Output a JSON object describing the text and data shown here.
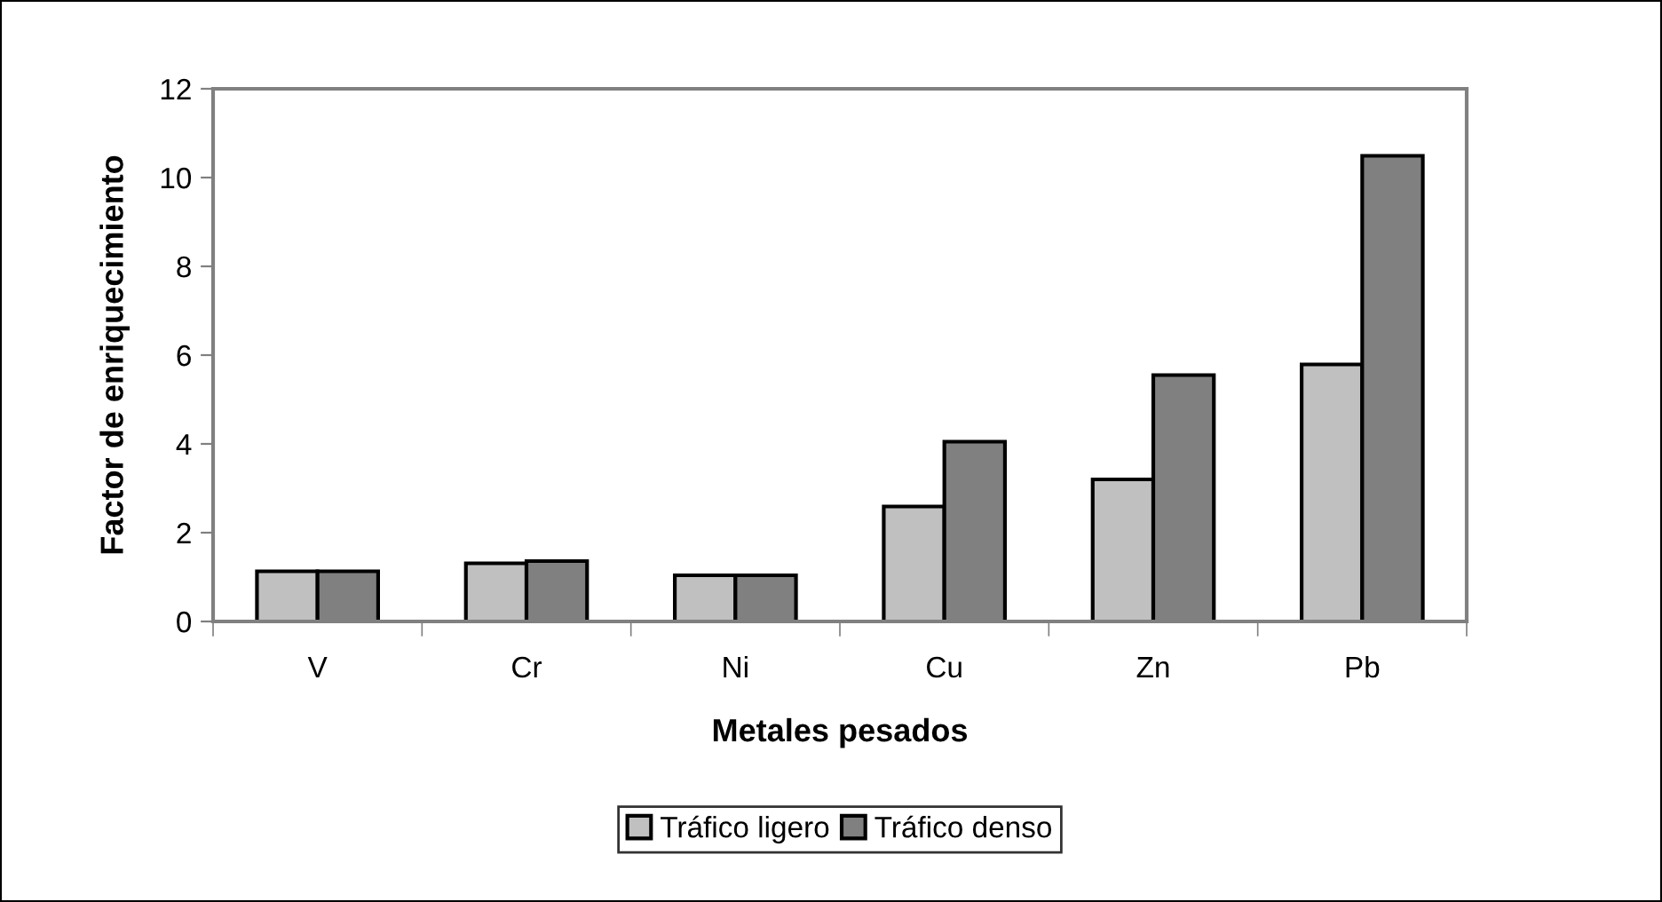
{
  "chart_data": {
    "type": "bar",
    "xlabel": "Metales pesados",
    "ylabel": "Factor de enriquecimiento",
    "categories": [
      "V",
      "Cr",
      "Ni",
      "Cu",
      "Zn",
      "Pb"
    ],
    "series": [
      {
        "name": "Tráfico ligero",
        "color": "#c0c0c0",
        "values": [
          1.13,
          1.31,
          1.04,
          2.59,
          3.2,
          5.79
        ]
      },
      {
        "name": "Tráfico denso",
        "color": "#808080",
        "values": [
          1.13,
          1.36,
          1.04,
          4.05,
          5.55,
          10.49
        ]
      }
    ],
    "ylim": [
      0,
      12
    ],
    "yticks": [
      0,
      2,
      4,
      6,
      8,
      10,
      12
    ],
    "grid": false,
    "legend": "bottom"
  }
}
